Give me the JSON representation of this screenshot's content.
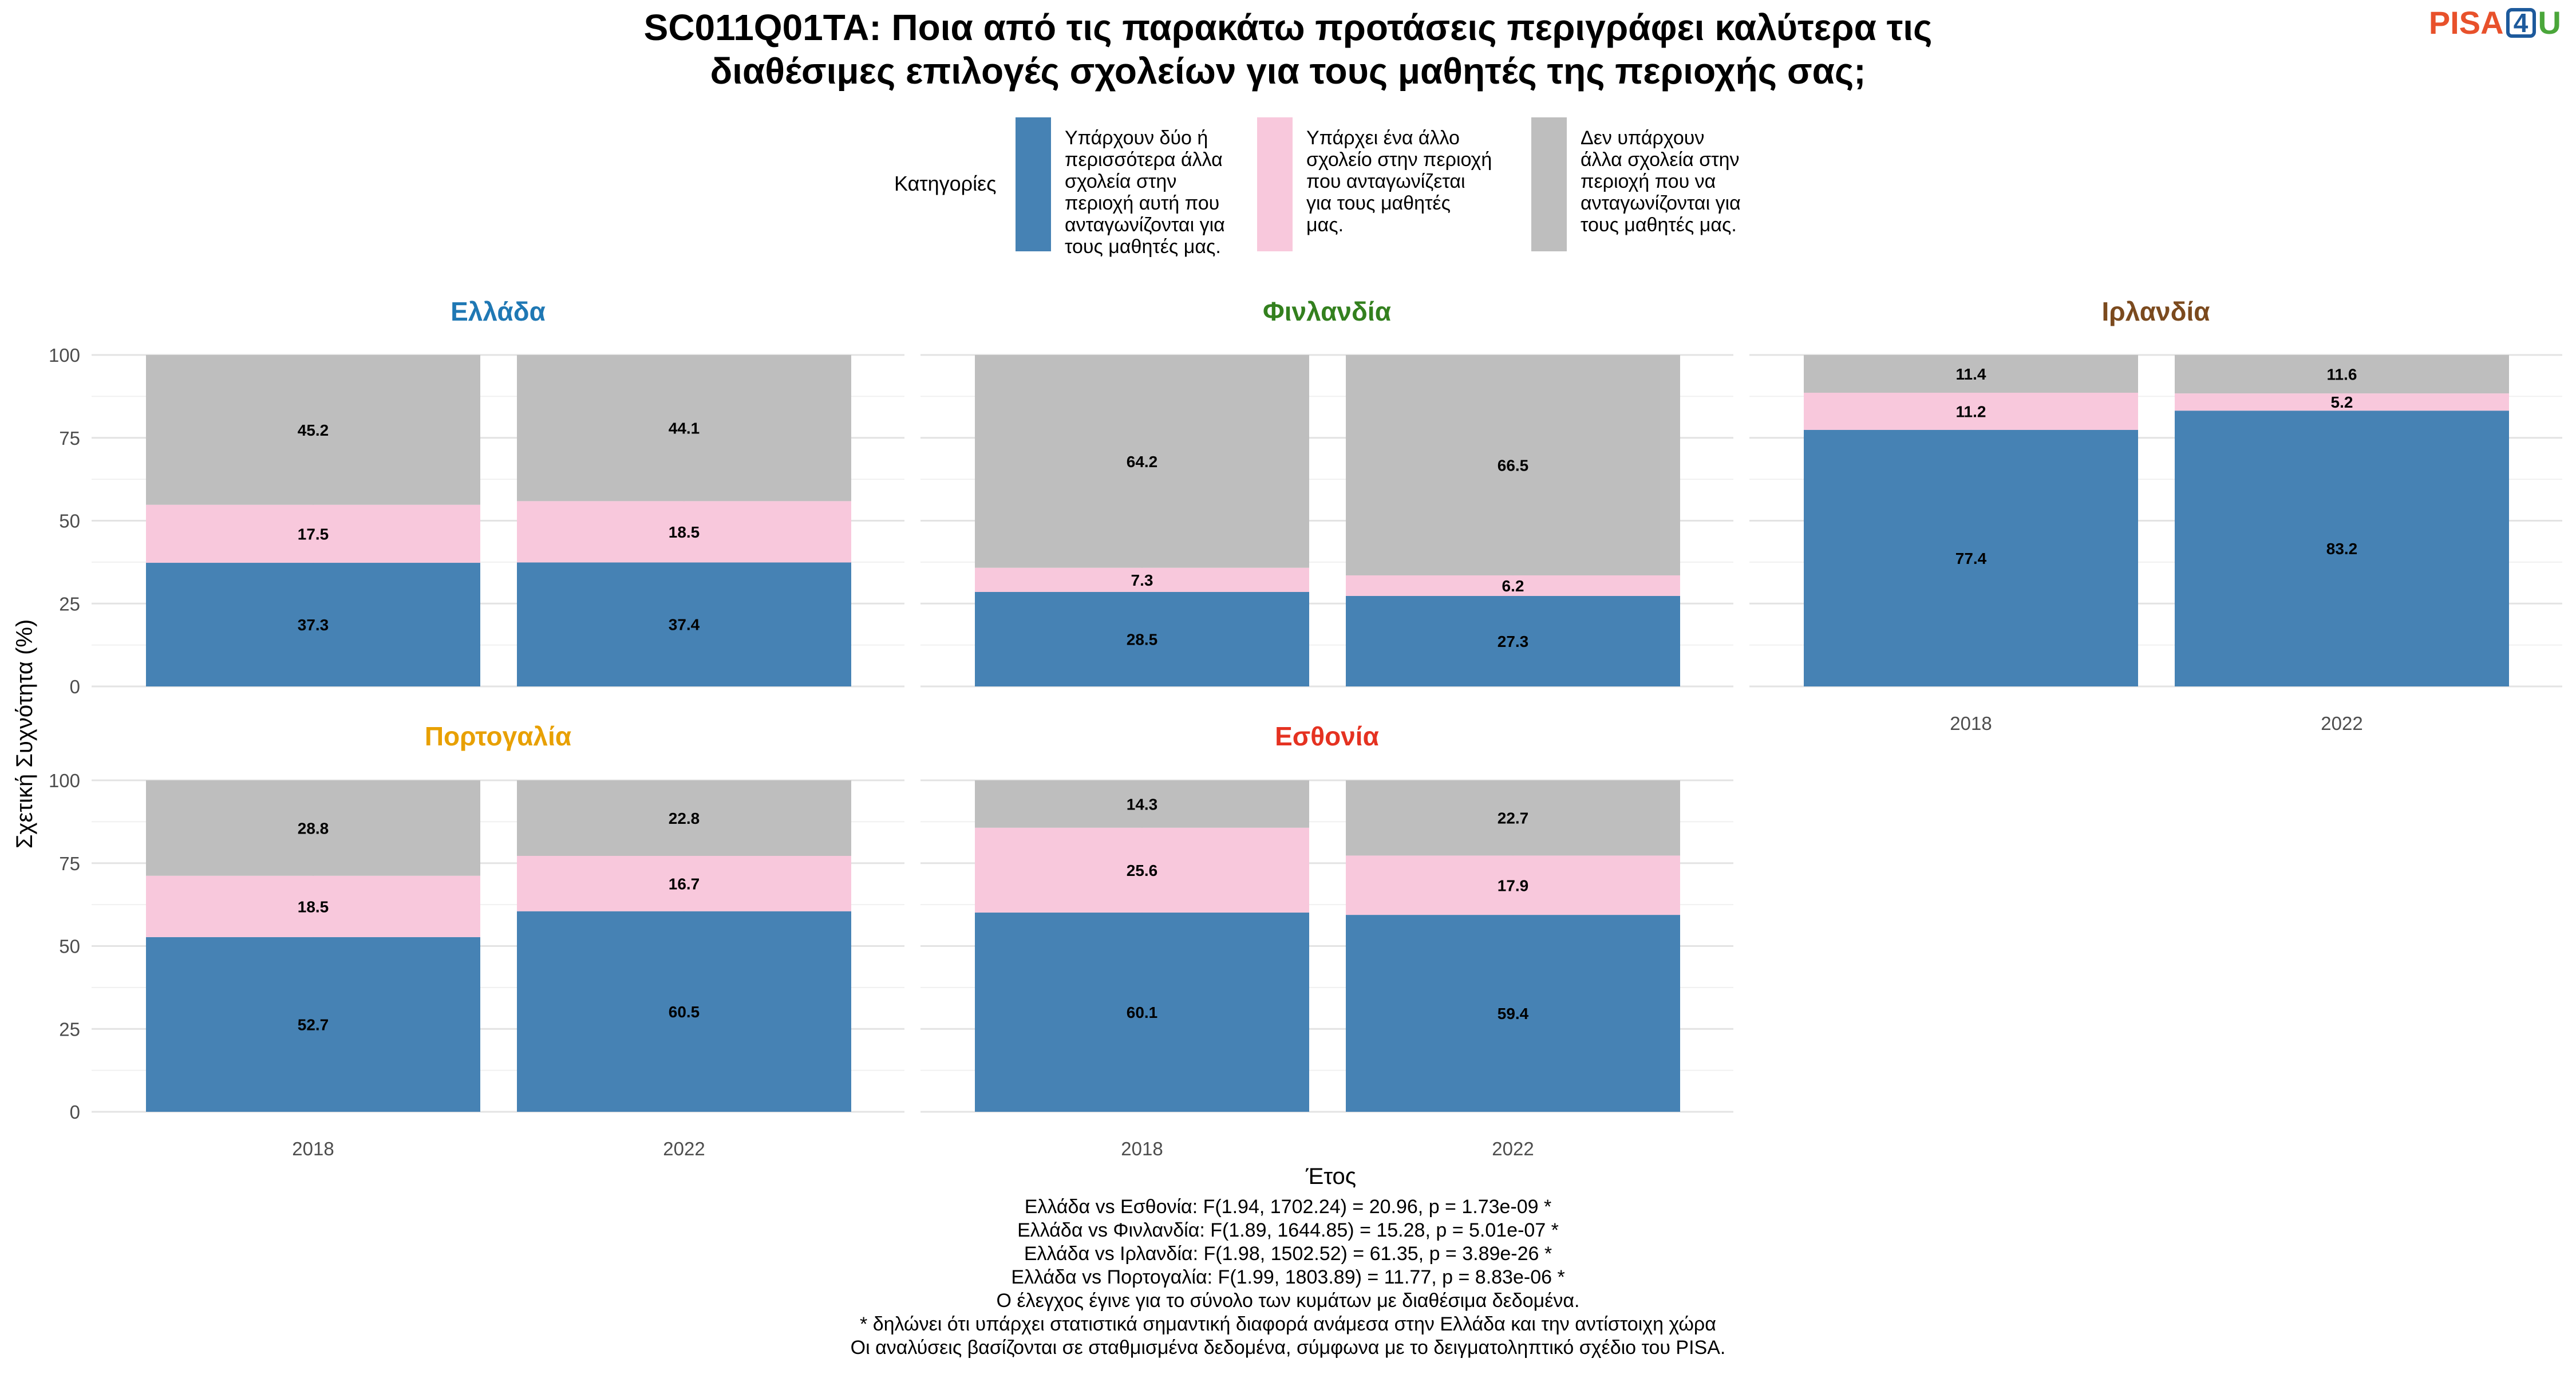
{
  "title_lines": [
    "SC011Q01TA: Ποια από τις παρακάτω προτάσεις περιγράφει καλύτερα τις",
    "διαθέσιμες επιλογές σχολείων για τους μαθητές της περιοχής σας;"
  ],
  "logo": {
    "part1": "PISA",
    "part2": "4",
    "part3": "U"
  },
  "legend": {
    "title": "Κατηγορίες",
    "items": [
      {
        "lines": [
          "Υπάρχουν δύο ή",
          "περισσότερα άλλα",
          "σχολεία στην",
          "περιοχή αυτή που",
          "ανταγωνίζονται για",
          "τους μαθητές μας."
        ],
        "color": "#4682b4"
      },
      {
        "lines": [
          "Υπάρχει ένα άλλο",
          "σχολείο στην περιοχή",
          "που ανταγωνίζεται",
          "για τους μαθητές",
          "μας."
        ],
        "color": "#f8c8dc"
      },
      {
        "lines": [
          "Δεν υπάρχουν",
          "άλλα σχολεία στην",
          "περιοχή που να",
          "ανταγωνίζονται για",
          "τους μαθητές μας."
        ],
        "color": "#bebebe"
      }
    ]
  },
  "chart_data": {
    "type": "bar",
    "stacked": true,
    "ylabel": "Σχετική Συχνότητα (%)",
    "xlabel": "Έτος",
    "ylim": [
      0,
      100
    ],
    "yticks": [
      0,
      25,
      50,
      75,
      100
    ],
    "categories": [
      "2018",
      "2022"
    ],
    "series_names": [
      "Υπάρχουν δύο ή περισσότερα άλλα σχολεία στην περιοχή αυτή που ανταγωνίζονται για τους μαθητές μας.",
      "Υπάρχει ένα άλλο σχολείο στην περιοχή που ανταγωνίζεται για τους μαθητές μας.",
      "Δεν υπάρχουν άλλα σχολεία στην περιοχή που να ανταγωνίζονται για τους μαθητές μας."
    ],
    "colors": [
      "#4682b4",
      "#f8c8dc",
      "#bebebe"
    ],
    "grid": true,
    "legend_position": "top",
    "panels": [
      {
        "name": "Ελλάδα",
        "title_color": "#1f78b4",
        "bars": [
          [
            37.3,
            17.5,
            45.2
          ],
          [
            37.4,
            18.5,
            44.1
          ]
        ]
      },
      {
        "name": "Φινλανδία",
        "title_color": "#33801e",
        "bars": [
          [
            28.5,
            7.3,
            64.2
          ],
          [
            27.3,
            6.2,
            66.5
          ]
        ]
      },
      {
        "name": "Ιρλανδία",
        "title_color": "#7b4a1e",
        "bars": [
          [
            77.4,
            11.2,
            11.4
          ],
          [
            83.2,
            5.2,
            11.6
          ]
        ]
      },
      {
        "name": "Πορτογαλία",
        "title_color": "#e8a000",
        "bars": [
          [
            52.7,
            18.5,
            28.8
          ],
          [
            60.5,
            16.7,
            22.8
          ]
        ]
      },
      {
        "name": "Εσθονία",
        "title_color": "#e53221",
        "bars": [
          [
            60.1,
            25.6,
            14.3
          ],
          [
            59.4,
            17.9,
            22.7
          ]
        ]
      }
    ]
  },
  "footnotes": [
    "Ελλάδα vs Εσθονία: F(1.94, 1702.24) = 20.96, p = 1.73e-09 *",
    "Ελλάδα vs Φινλανδία: F(1.89, 1644.85) = 15.28, p = 5.01e-07 *",
    "Ελλάδα vs Ιρλανδία: F(1.98, 1502.52) = 61.35, p = 3.89e-26 *",
    "Ελλάδα vs Πορτογαλία: F(1.99, 1803.89) = 11.77, p = 8.83e-06 *",
    "Ο έλεγχος έγινε για το σύνολο των κυμάτων με διαθέσιμα δεδομένα.",
    "* δηλώνει ότι υπάρχει στατιστικά σημαντική διαφορά ανάμεσα στην Ελλάδα και την αντίστοιχη χώρα",
    "Οι αναλύσεις βασίζονται σε σταθμισμένα δεδομένα, σύμφωνα με το δειγματοληπτικό σχέδιο του PISA."
  ]
}
